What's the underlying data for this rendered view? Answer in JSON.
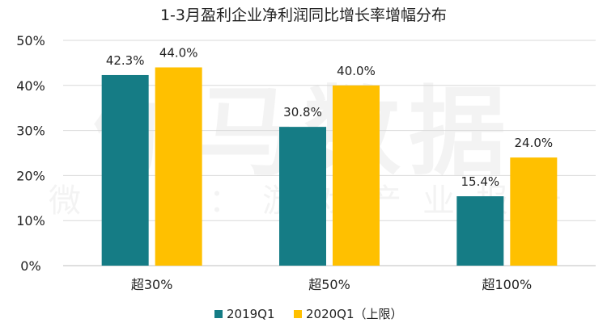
{
  "watermark": {
    "main": "伽马数据",
    "sub": "微信号：游戏产业报告"
  },
  "chart_data": {
    "type": "bar",
    "title": "1-3月盈利企业净利润同比增长率增幅分布",
    "xlabel": "",
    "ylabel": "",
    "categories": [
      "超30%",
      "超50%",
      "超100%"
    ],
    "series": [
      {
        "name": "2019Q1",
        "values": [
          42.3,
          30.8,
          15.4
        ],
        "color": "#157C85"
      },
      {
        "name": "2020Q1（上限）",
        "values": [
          44.0,
          40.0,
          24.0
        ],
        "color": "#FFC000"
      }
    ],
    "ylim": [
      0,
      50
    ],
    "yticks": [
      0,
      10,
      20,
      30,
      40,
      50
    ],
    "tick_suffix": "%",
    "data_label_suffix": "%",
    "grid": true,
    "legend_position": "bottom-center"
  }
}
